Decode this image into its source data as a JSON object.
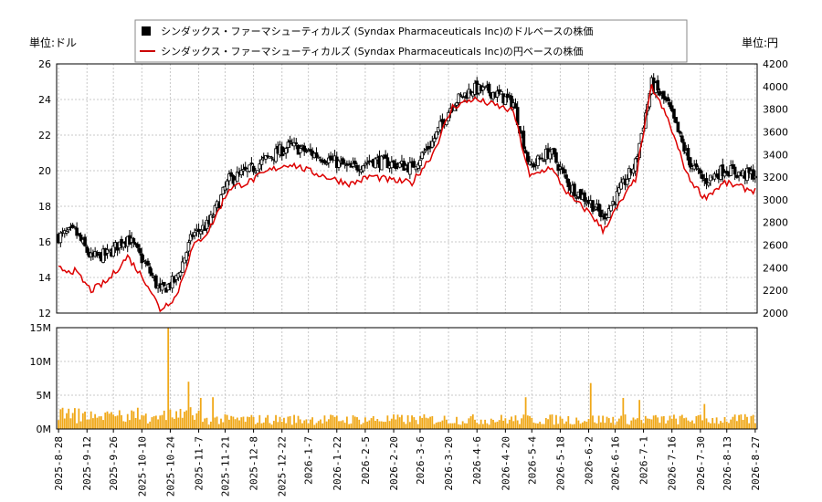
{
  "title": "",
  "unit_left": "単位:ドル",
  "unit_right": "単位:円",
  "legend": [
    {
      "label": "シンダックス・ファーマシューティカルズ (Syndax Pharmaceuticals Inc)のドルベースの株価",
      "color": "#000000",
      "marker": "square"
    },
    {
      "label": "シンダックス・ファーマシューティカルズ (Syndax Pharmaceuticals Inc)の円ベースの株価",
      "color": "#cc0000",
      "marker": "line"
    }
  ],
  "colors": {
    "candle": "#000000",
    "yen_line": "#dd0000",
    "volume": "#f0a818",
    "grid": "#c8c8c8"
  },
  "chart_data": {
    "type": "candlestick+line+bar",
    "x_tick_labels": [
      "2025-8-28",
      "2025-9-12",
      "2025-9-26",
      "2025-10-10",
      "2025-10-24",
      "2025-11-7",
      "2025-11-21",
      "2025-12-8",
      "2025-12-22",
      "2026-1-7",
      "2026-1-22",
      "2026-2-5",
      "2026-2-20",
      "2026-3-6",
      "2026-3-20",
      "2026-4-6",
      "2026-4-20",
      "2026-5-4",
      "2026-5-18",
      "2026-6-2",
      "2026-6-16",
      "2026-7-1",
      "2026-7-16",
      "2026-7-30",
      "2026-8-13",
      "2026-8-27"
    ],
    "price_axis_left": {
      "min": 12,
      "max": 26,
      "ticks": [
        12,
        14,
        16,
        18,
        20,
        22,
        24,
        26
      ]
    },
    "price_axis_right": {
      "min": 2000,
      "max": 4200,
      "ticks": [
        2000,
        2200,
        2400,
        2600,
        2800,
        3000,
        3200,
        3400,
        3600,
        3800,
        4000,
        4200
      ]
    },
    "volume_axis": {
      "min": 0,
      "max": 15000000,
      "ticks": [
        0,
        5000000,
        10000000,
        15000000
      ],
      "tick_labels": [
        "0M",
        "5M",
        "10M",
        "15M"
      ]
    },
    "usd_close_keypoints": [
      [
        0,
        16.3
      ],
      [
        8,
        16.6
      ],
      [
        16,
        15.1
      ],
      [
        24,
        15.3
      ],
      [
        34,
        16.3
      ],
      [
        44,
        14.5
      ],
      [
        50,
        13.2
      ],
      [
        58,
        13.9
      ],
      [
        66,
        16.4
      ],
      [
        74,
        17.0
      ],
      [
        84,
        19.5
      ],
      [
        94,
        20.0
      ],
      [
        104,
        20.8
      ],
      [
        114,
        21.4
      ],
      [
        124,
        21.0
      ],
      [
        134,
        20.6
      ],
      [
        144,
        20.1
      ],
      [
        154,
        20.6
      ],
      [
        164,
        20.4
      ],
      [
        174,
        20.2
      ],
      [
        184,
        21.6
      ],
      [
        194,
        23.8
      ],
      [
        204,
        24.6
      ],
      [
        214,
        24.4
      ],
      [
        224,
        23.8
      ],
      [
        232,
        20.2
      ],
      [
        242,
        21.1
      ],
      [
        252,
        19.1
      ],
      [
        262,
        18.2
      ],
      [
        268,
        17.4
      ],
      [
        274,
        18.4
      ],
      [
        284,
        20.4
      ],
      [
        292,
        24.9
      ],
      [
        300,
        23.7
      ],
      [
        310,
        20.6
      ],
      [
        318,
        19.4
      ],
      [
        328,
        20.1
      ],
      [
        336,
        19.8
      ],
      [
        343,
        19.8
      ]
    ],
    "yen_close_keypoints": [
      [
        0,
        2390
      ],
      [
        8,
        2370
      ],
      [
        16,
        2200
      ],
      [
        24,
        2280
      ],
      [
        34,
        2500
      ],
      [
        44,
        2250
      ],
      [
        50,
        2030
      ],
      [
        58,
        2150
      ],
      [
        66,
        2580
      ],
      [
        74,
        2730
      ],
      [
        84,
        3100
      ],
      [
        94,
        3160
      ],
      [
        104,
        3260
      ],
      [
        114,
        3320
      ],
      [
        124,
        3250
      ],
      [
        134,
        3190
      ],
      [
        144,
        3140
      ],
      [
        154,
        3210
      ],
      [
        164,
        3170
      ],
      [
        174,
        3150
      ],
      [
        184,
        3400
      ],
      [
        194,
        3820
      ],
      [
        204,
        3890
      ],
      [
        214,
        3840
      ],
      [
        224,
        3780
      ],
      [
        232,
        3200
      ],
      [
        242,
        3290
      ],
      [
        252,
        3020
      ],
      [
        262,
        2880
      ],
      [
        268,
        2730
      ],
      [
        274,
        2900
      ],
      [
        284,
        3180
      ],
      [
        292,
        4000
      ],
      [
        300,
        3710
      ],
      [
        310,
        3200
      ],
      [
        318,
        3020
      ],
      [
        328,
        3150
      ],
      [
        336,
        3110
      ],
      [
        343,
        3080
      ]
    ],
    "volume_spikes": [
      [
        54,
        15000000
      ],
      [
        64,
        7000000
      ],
      [
        70,
        4600000
      ],
      [
        76,
        4700000
      ],
      [
        230,
        4700000
      ],
      [
        262,
        6800000
      ],
      [
        278,
        4600000
      ],
      [
        286,
        4300000
      ],
      [
        318,
        3700000
      ]
    ]
  }
}
